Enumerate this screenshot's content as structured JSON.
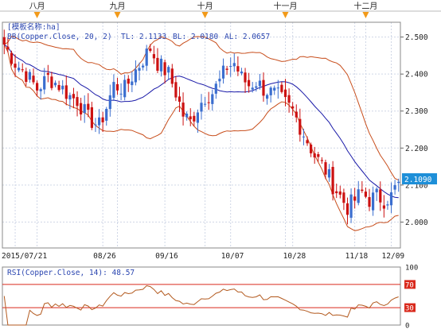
{
  "colors": {
    "up": "#3b6ecf",
    "down": "#cc1111",
    "bands": "#c84e1c",
    "midline": "#1a1aa8",
    "grid": "#cfd6e6",
    "axis_text": "#222222",
    "legend_text": "#2b46b0",
    "price_tag": "#1e8fd8",
    "rsi_line": "#b35a1f",
    "rsi_level": "#d9291c",
    "month_marker": "#f29a1a"
  },
  "chart_data": [
    {
      "type": "candlestick",
      "instrument_label": "[模板名称:ha]",
      "indicator": {
        "label": "BB(Copper.Close, 20, 2)",
        "TL": 2.1133,
        "BL": 2.018,
        "AL": 2.0657,
        "tl_label": "TL: 2.1133",
        "bl_label": "BL: 2.0180",
        "al_label": "AL: 2.0657"
      },
      "last_price": 2.109,
      "last_price_label": "2.1090",
      "ylim": [
        1.93,
        2.54
      ],
      "y_ticks": [
        2.0,
        2.1,
        2.2,
        2.3,
        2.4,
        2.5
      ],
      "y_tick_labels": [
        "2.000",
        "2.100",
        "2.200",
        "2.300",
        "2.400",
        "2.500"
      ],
      "x_tick_labels": [
        "2015/07/21",
        "08/26",
        "09/16",
        "10/07",
        "10/28",
        "11/18",
        "12/09"
      ],
      "month_markers": [
        "八月",
        "九月",
        "十月",
        "十一月",
        "十二月"
      ],
      "grid": true,
      "close_path": [
        [
          0,
          2.48
        ],
        [
          3,
          2.43
        ],
        [
          6,
          2.4
        ],
        [
          9,
          2.36
        ],
        [
          12,
          2.39
        ],
        [
          15,
          2.37
        ],
        [
          18,
          2.34
        ],
        [
          20,
          2.33
        ],
        [
          23,
          2.28
        ],
        [
          26,
          2.26
        ],
        [
          28,
          2.31
        ],
        [
          30,
          2.37
        ],
        [
          33,
          2.36
        ],
        [
          36,
          2.41
        ],
        [
          38,
          2.44
        ],
        [
          40,
          2.47
        ],
        [
          42,
          2.43
        ],
        [
          45,
          2.4
        ],
        [
          47,
          2.35
        ],
        [
          49,
          2.29
        ],
        [
          51,
          2.27
        ],
        [
          53,
          2.31
        ],
        [
          55,
          2.34
        ],
        [
          57,
          2.35
        ],
        [
          59,
          2.38
        ],
        [
          61,
          2.42
        ],
        [
          63,
          2.43
        ],
        [
          65,
          2.39
        ],
        [
          67,
          2.37
        ],
        [
          69,
          2.38
        ],
        [
          71,
          2.36
        ],
        [
          73,
          2.35
        ],
        [
          75,
          2.34
        ],
        [
          77,
          2.32
        ],
        [
          79,
          2.3
        ],
        [
          82,
          2.24
        ],
        [
          85,
          2.18
        ],
        [
          88,
          2.14
        ],
        [
          90,
          2.1
        ],
        [
          92,
          2.07
        ],
        [
          94,
          2.04
        ],
        [
          96,
          2.06
        ],
        [
          98,
          2.08
        ],
        [
          100,
          2.06
        ],
        [
          102,
          2.07
        ],
        [
          104,
          2.06
        ],
        [
          106,
          2.07
        ],
        [
          107,
          2.09
        ],
        [
          108,
          2.11
        ]
      ],
      "n_bars": 109
    },
    {
      "type": "line",
      "label": "RSI(Copper.Close, 14): 48.57",
      "value": 48.57,
      "ylim": [
        0,
        100
      ],
      "levels": [
        70,
        30
      ],
      "y_ticks": [
        0,
        30,
        70,
        100
      ],
      "y_tick_labels": [
        "0",
        "30",
        "70",
        "100"
      ]
    }
  ]
}
